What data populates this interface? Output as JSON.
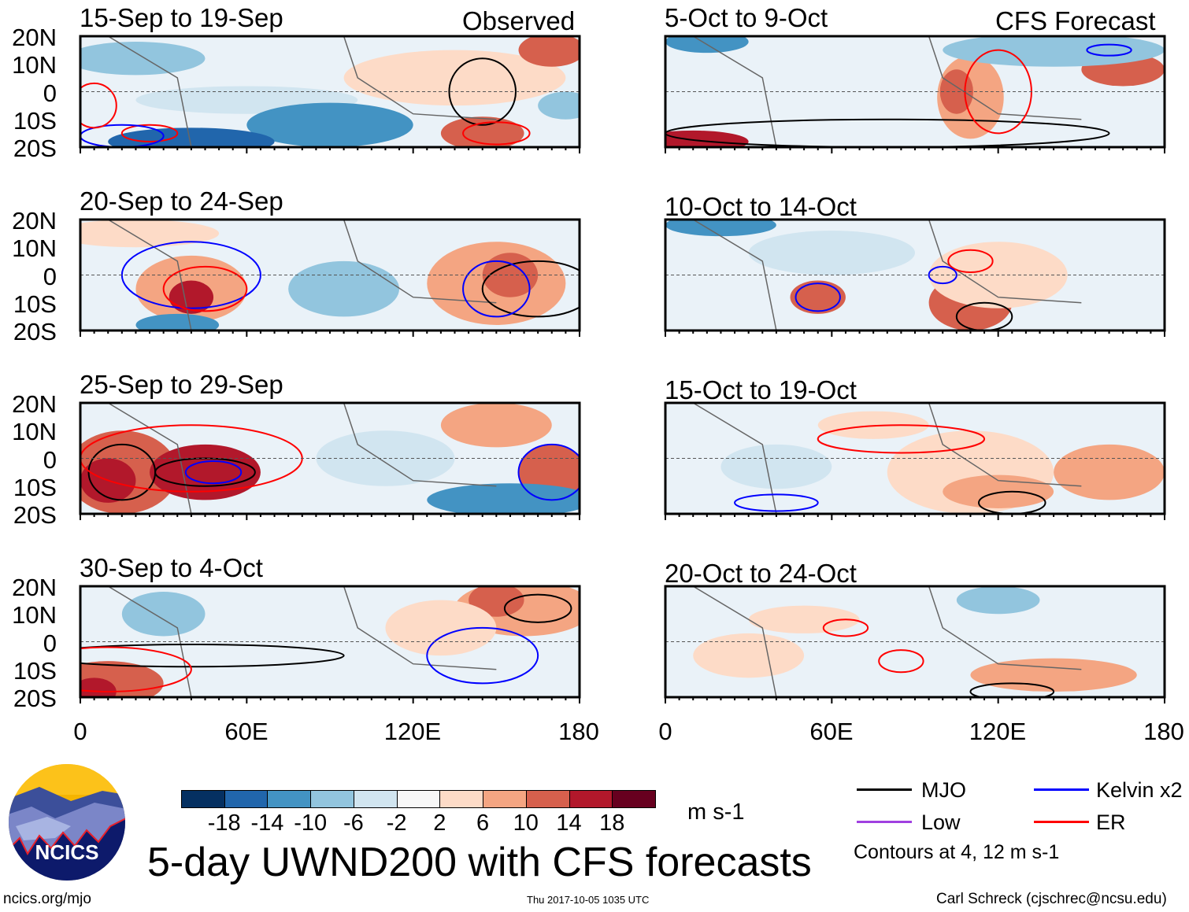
{
  "title": "5-day UWND200 with CFS forecasts",
  "left_header": "Observed",
  "right_header": "CFS Forecast",
  "panels_left": [
    "15-Sep to 19-Sep",
    "20-Sep to 24-Sep",
    "25-Sep to 29-Sep",
    "30-Sep to 4-Oct"
  ],
  "panels_right": [
    "5-Oct to 9-Oct",
    "10-Oct to 14-Oct",
    "15-Oct to 19-Oct",
    "20-Oct to 24-Oct"
  ],
  "lat_labels": [
    "20N",
    "10N",
    "0",
    "10S",
    "20S"
  ],
  "lon_labels": [
    "0",
    "60E",
    "120E",
    "180"
  ],
  "colorbar": {
    "labels": [
      "-18",
      "-14",
      "-10",
      "-6",
      "-2",
      "2",
      "6",
      "10",
      "14",
      "18"
    ],
    "colors": [
      "#053061",
      "#2166ac",
      "#4393c3",
      "#92c5de",
      "#d1e5f0",
      "#f7f7f7",
      "#fddbc7",
      "#f4a582",
      "#d6604d",
      "#b2182b",
      "#67001f"
    ],
    "units": "m s-1"
  },
  "legend": {
    "items": [
      {
        "label": "MJO",
        "color": "#000000"
      },
      {
        "label": "Kelvin x2",
        "color": "#0000ff"
      },
      {
        "label": "Low",
        "color": "#a040e0"
      },
      {
        "label": "ER",
        "color": "#ff0000"
      }
    ],
    "note": "Contours at 4, 12 m s-1"
  },
  "logo_text": "NCICS",
  "footer": {
    "url": "ncics.org/mjo",
    "timestamp": "Thu 2017-10-05 1035 UTC",
    "author": "Carl Schreck (cjschrec@ncsu.edu)"
  }
}
